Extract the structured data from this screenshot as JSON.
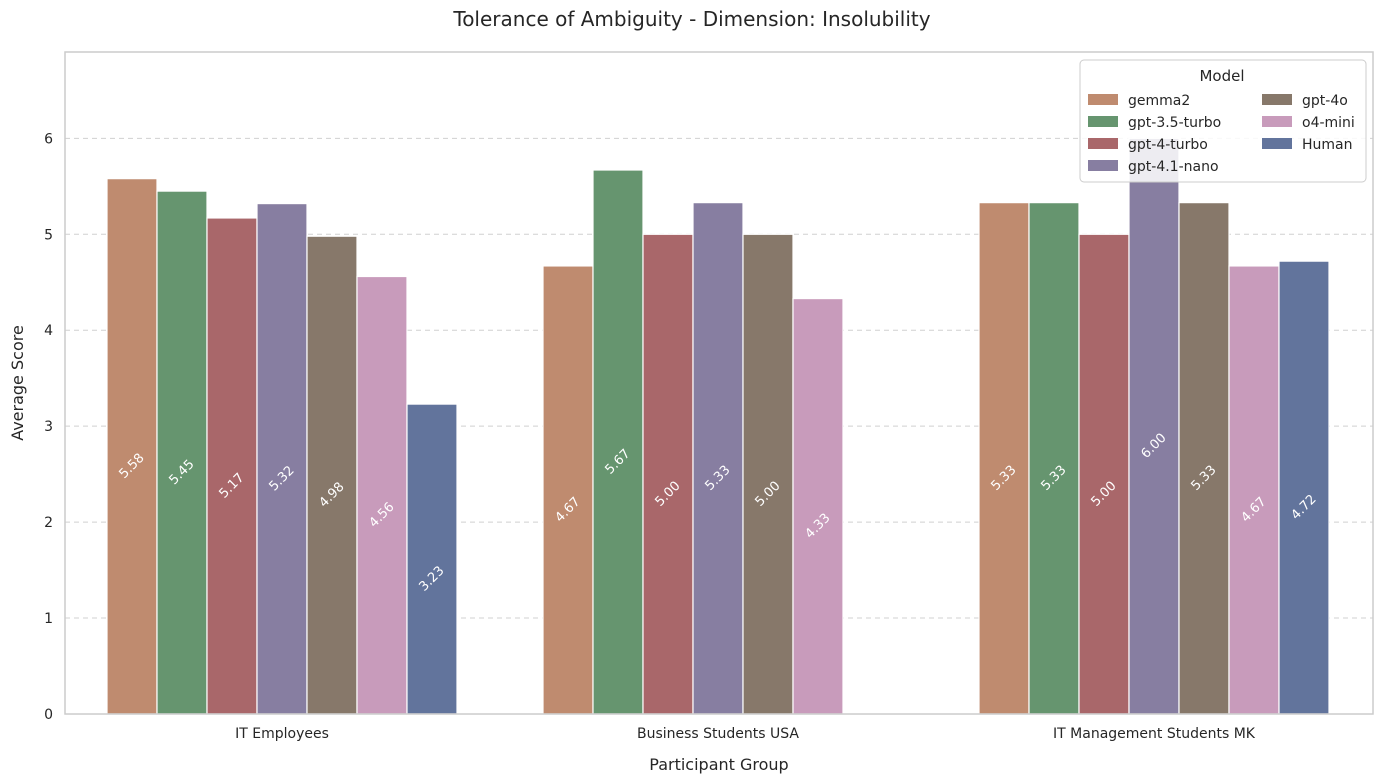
{
  "chart_data": {
    "type": "bar",
    "title": "Tolerance of Ambiguity - Dimension: Insolubility",
    "xlabel": "Participant Group",
    "ylabel": "Average Score",
    "ylim": [
      0,
      6.9
    ],
    "yticks": [
      0,
      1,
      2,
      3,
      4,
      5,
      6
    ],
    "grid": "horizontal dashed",
    "categories": [
      "IT Employees",
      "Business Students USA",
      "IT Management Students MK"
    ],
    "series": [
      {
        "name": "gemma2",
        "color": "#bf8b6f",
        "values": [
          5.58,
          4.67,
          5.33
        ],
        "labels": [
          "5.58",
          "4.67",
          "5.33"
        ]
      },
      {
        "name": "gpt-3.5-turbo",
        "color": "#66956f",
        "values": [
          5.45,
          5.67,
          5.33
        ],
        "labels": [
          "5.45",
          "5.67",
          "5.33"
        ]
      },
      {
        "name": "gpt-4-turbo",
        "color": "#a9676a",
        "values": [
          5.17,
          5.0,
          5.0
        ],
        "labels": [
          "5.17",
          "5.00",
          "5.00"
        ]
      },
      {
        "name": "gpt-4.1-nano",
        "color": "#877ea1",
        "values": [
          5.32,
          5.33,
          6.0
        ],
        "labels": [
          "5.32",
          "5.33",
          "6.00"
        ]
      },
      {
        "name": "gpt-4o",
        "color": "#87786a",
        "values": [
          4.98,
          5.0,
          5.33
        ],
        "labels": [
          "4.98",
          "5.00",
          "5.33"
        ]
      },
      {
        "name": "o4-mini",
        "color": "#c89bbb",
        "values": [
          4.56,
          4.33,
          4.67
        ],
        "labels": [
          "4.56",
          "4.33",
          "4.67"
        ]
      },
      {
        "name": "Human",
        "color": "#62749c",
        "values": [
          3.23,
          null,
          4.72
        ],
        "labels": [
          "3.23",
          "",
          "4.72"
        ]
      }
    ],
    "legend": {
      "title": "Model",
      "placement": "top-right",
      "columns": 2
    }
  }
}
